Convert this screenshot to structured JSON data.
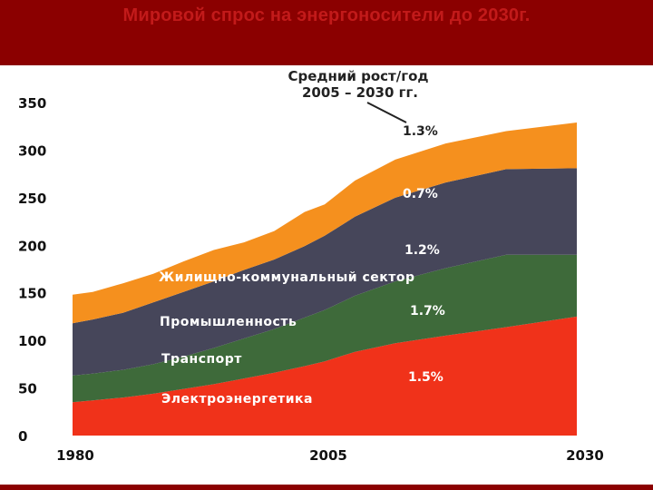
{
  "header": {
    "title": "Мировой спрос на энергоносители до 2030г."
  },
  "colors": {
    "header_bg": "#8b0000",
    "header_text": "#c21a1a",
    "electricity": "#f0321a",
    "transport": "#3e6a3a",
    "industry": "#46465a",
    "residential": "#f5901e"
  },
  "chart_data": {
    "type": "area",
    "stacked": true,
    "x": [
      1980,
      1982,
      1985,
      1988,
      1991,
      1994,
      1997,
      2000,
      2003,
      2005,
      2008,
      2012,
      2017,
      2023,
      2030
    ],
    "xticks": [
      "1980",
      "2005",
      "2030"
    ],
    "yticks": [
      "0",
      "50",
      "100",
      "150",
      "200",
      "250",
      "300",
      "350"
    ],
    "ylim": [
      0,
      350
    ],
    "xlim": [
      1980,
      2030
    ],
    "title": "",
    "xlabel": "",
    "ylabel": "",
    "series": [
      {
        "key": "electricity",
        "values": [
          35,
          37,
          40,
          44,
          49,
          54,
          60,
          66,
          73,
          78,
          88,
          97,
          105,
          114,
          125
        ]
      },
      {
        "key": "transport",
        "values": [
          28,
          28,
          29,
          31,
          34,
          38,
          42,
          46,
          51,
          54,
          59,
          65,
          71,
          76,
          65
        ]
      },
      {
        "key": "industry",
        "values": [
          55,
          57,
          60,
          65,
          68,
          70,
          72,
          73,
          75,
          78,
          83,
          88,
          90,
          90,
          91
        ]
      },
      {
        "key": "residential",
        "values": [
          30,
          29,
          31,
          30,
          32,
          33,
          29,
          30,
          36,
          33,
          38,
          40,
          41,
          40,
          48
        ]
      }
    ],
    "annotations": {
      "avg_growth_title_line1": "Средний рост/год",
      "avg_growth_title_line2": "2005 – 2030 гг.",
      "growth_residential": "1.3%",
      "growth_industry": "0.7%",
      "growth_transport": "1.2%",
      "growth_transport2": "1.7%",
      "growth_electricity": "1.5%",
      "label_residential": "Жилищно-коммунальный сектор",
      "label_industry": "Промышленность",
      "label_transport": "Транспорт",
      "label_electricity": "Электроэнергетика"
    }
  }
}
